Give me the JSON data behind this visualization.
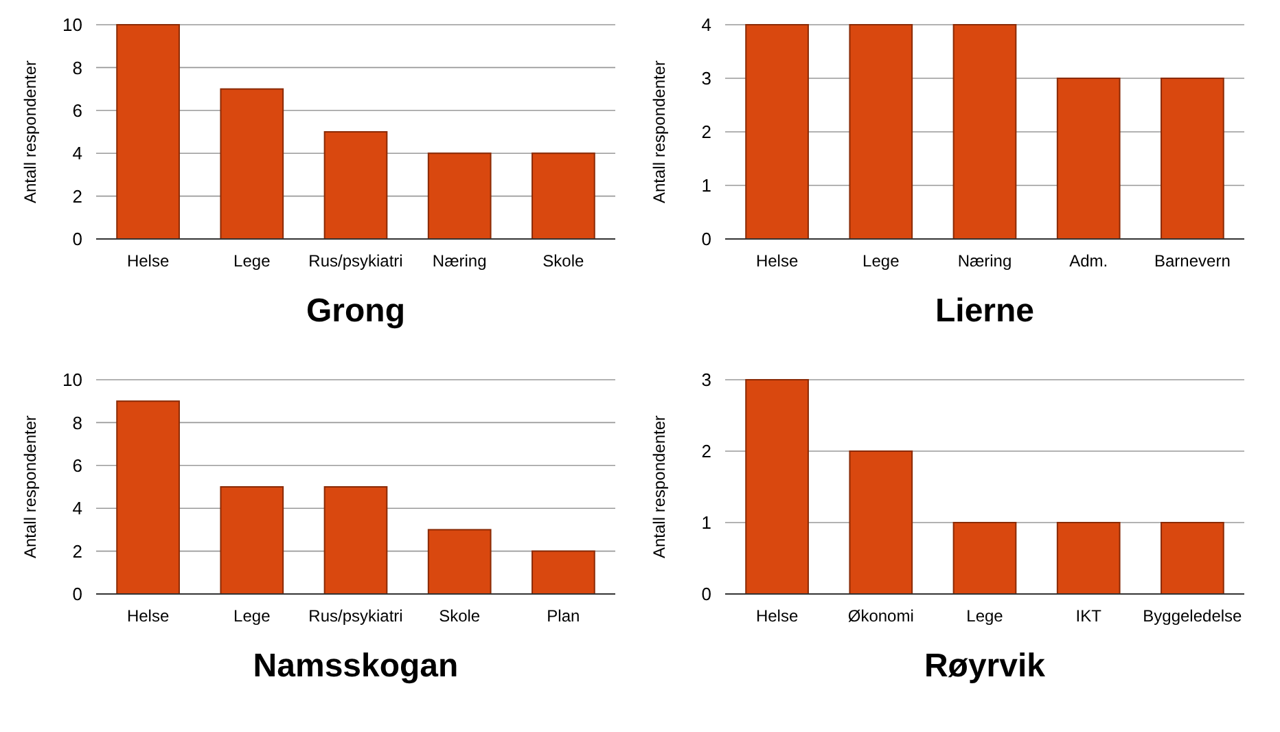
{
  "chart_data": [
    {
      "type": "bar",
      "title": "Grong",
      "ylabel": "Antall respondenter",
      "categories": [
        "Helse",
        "Lege",
        "Rus/psykiatri",
        "Næring",
        "Skole"
      ],
      "values": [
        10,
        7,
        5,
        4,
        4
      ],
      "color": "#d9480f",
      "ylim": [
        0,
        10
      ],
      "yticks": [
        0,
        2,
        4,
        6,
        8,
        10
      ],
      "grid": "y"
    },
    {
      "type": "bar",
      "title": "Lierne",
      "ylabel": "Antall respondenter",
      "categories": [
        "Helse",
        "Lege",
        "Næring",
        "Adm.",
        "Barnevern"
      ],
      "values": [
        4,
        4,
        4,
        3,
        3
      ],
      "color": "#d9480f",
      "ylim": [
        0,
        4
      ],
      "yticks": [
        0,
        1,
        2,
        3,
        4
      ],
      "grid": "y"
    },
    {
      "type": "bar",
      "title": "Namsskogan",
      "ylabel": "Antall respondenter",
      "categories": [
        "Helse",
        "Lege",
        "Rus/psykiatri",
        "Skole",
        "Plan"
      ],
      "values": [
        9,
        5,
        5,
        3,
        2
      ],
      "color": "#d9480f",
      "ylim": [
        0,
        10
      ],
      "yticks": [
        0,
        2,
        4,
        6,
        8,
        10
      ],
      "grid": "y"
    },
    {
      "type": "bar",
      "title": "Røyrvik",
      "ylabel": "Antall respondenter",
      "categories": [
        "Helse",
        "Økonomi",
        "Lege",
        "IKT",
        "Byggeledelse"
      ],
      "values": [
        3,
        2,
        1,
        1,
        1
      ],
      "color": "#d9480f",
      "ylim": [
        0,
        3
      ],
      "yticks": [
        0,
        1,
        2,
        3
      ],
      "grid": "y"
    }
  ]
}
